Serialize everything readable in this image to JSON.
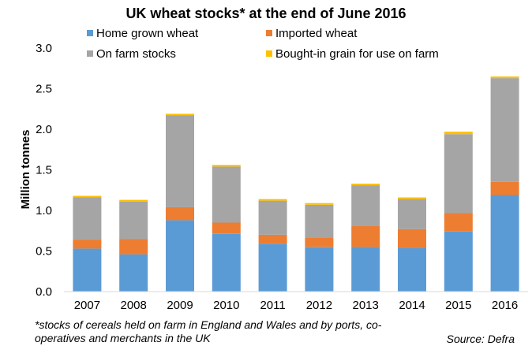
{
  "chart_data": {
    "type": "bar",
    "stacked": true,
    "title": "UK wheat stocks* at the end of June 2016",
    "ylabel": "Million tonnes",
    "xlabel": "",
    "ylim": [
      0,
      3.0
    ],
    "yticks": [
      "0.0",
      "0.5",
      "1.0",
      "1.5",
      "2.0",
      "2.5",
      "3.0"
    ],
    "grid": false,
    "legend_position": "top",
    "categories": [
      "2007",
      "2008",
      "2009",
      "2010",
      "2011",
      "2012",
      "2013",
      "2014",
      "2015",
      "2016"
    ],
    "series": [
      {
        "name": "Home grown wheat",
        "color": "#5B9BD5",
        "values": [
          0.53,
          0.46,
          0.88,
          0.71,
          0.59,
          0.55,
          0.55,
          0.54,
          0.74,
          1.19
        ]
      },
      {
        "name": "Imported wheat",
        "color": "#ED7D31",
        "values": [
          0.11,
          0.19,
          0.16,
          0.14,
          0.11,
          0.11,
          0.26,
          0.23,
          0.23,
          0.16
        ]
      },
      {
        "name": "On farm stocks",
        "color": "#A5A5A5",
        "values": [
          0.52,
          0.46,
          1.13,
          0.69,
          0.42,
          0.41,
          0.5,
          0.37,
          0.97,
          1.28
        ]
      },
      {
        "name": "Bought-in grain for use on farm",
        "color": "#FFC000",
        "values": [
          0.02,
          0.02,
          0.02,
          0.02,
          0.02,
          0.02,
          0.02,
          0.02,
          0.03,
          0.02
        ]
      }
    ],
    "footnote": "*stocks of cereals held on farm in England and Wales and by ports, co-operatives and merchants in the UK",
    "source": "Source: Defra"
  }
}
